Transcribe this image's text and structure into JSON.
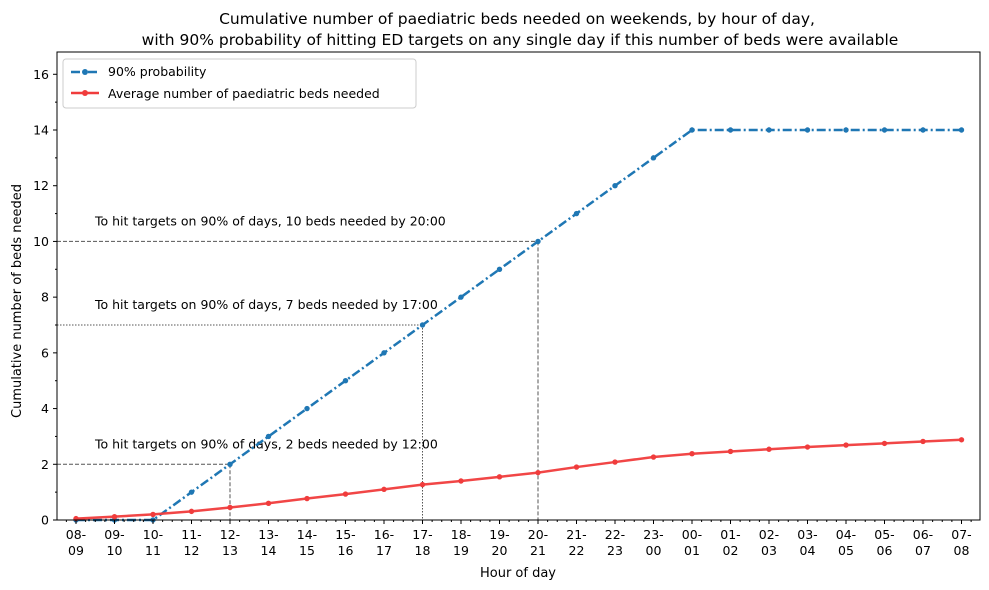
{
  "chart_data": {
    "type": "line",
    "title_lines": [
      "Cumulative number of paediatric beds needed on weekends, by hour of day,",
      "with 90% probability of hitting ED targets on any single day if this number of beds were available"
    ],
    "xlabel": "Hour of day",
    "ylabel": "Cumulative number of beds needed",
    "ylim": [
      0,
      16.8
    ],
    "yticks": [
      0,
      2,
      4,
      6,
      8,
      10,
      12,
      14,
      16
    ],
    "categories": [
      [
        "08-",
        "09"
      ],
      [
        "09-",
        "10"
      ],
      [
        "10-",
        "11"
      ],
      [
        "11-",
        "12"
      ],
      [
        "12-",
        "13"
      ],
      [
        "13-",
        "14"
      ],
      [
        "14-",
        "15"
      ],
      [
        "15-",
        "16"
      ],
      [
        "16-",
        "17"
      ],
      [
        "17-",
        "18"
      ],
      [
        "18-",
        "19"
      ],
      [
        "19-",
        "20"
      ],
      [
        "20-",
        "21"
      ],
      [
        "21-",
        "22"
      ],
      [
        "22-",
        "23"
      ],
      [
        "23-",
        "00"
      ],
      [
        "00-",
        "01"
      ],
      [
        "01-",
        "02"
      ],
      [
        "02-",
        "03"
      ],
      [
        "03-",
        "04"
      ],
      [
        "04-",
        "05"
      ],
      [
        "05-",
        "06"
      ],
      [
        "06-",
        "07"
      ],
      [
        "07-",
        "08"
      ]
    ],
    "series": [
      {
        "name": "90% probability",
        "color": "#1f77b4",
        "style": "dashdot",
        "values": [
          0,
          0,
          0,
          1,
          2,
          3,
          4,
          5,
          6,
          7,
          8,
          9,
          10,
          11,
          12,
          13,
          14,
          14,
          14,
          14,
          14,
          14,
          14,
          14
        ]
      },
      {
        "name": "Average number of paediatric beds needed",
        "color": "#f03c3c",
        "style": "solid",
        "values": [
          0.05,
          0.12,
          0.2,
          0.31,
          0.45,
          0.6,
          0.77,
          0.93,
          1.1,
          1.27,
          1.4,
          1.55,
          1.7,
          1.9,
          2.08,
          2.26,
          2.38,
          2.46,
          2.54,
          2.62,
          2.69,
          2.75,
          2.82,
          2.88
        ]
      }
    ],
    "annotations": [
      {
        "text": "To hit targets on 90% of days, 2 beds needed by 12:00",
        "x_index": 4,
        "y": 2,
        "line_style": "dashed"
      },
      {
        "text": "To hit targets on 90% of days, 7 beds needed by 17:00",
        "x_index": 9,
        "y": 7,
        "line_style": "dotted"
      },
      {
        "text": "To hit targets on 90% of days, 10 beds needed by 20:00",
        "x_index": 12,
        "y": 10,
        "line_style": "dashed"
      }
    ],
    "legend_position": "top-left",
    "grid": false
  }
}
